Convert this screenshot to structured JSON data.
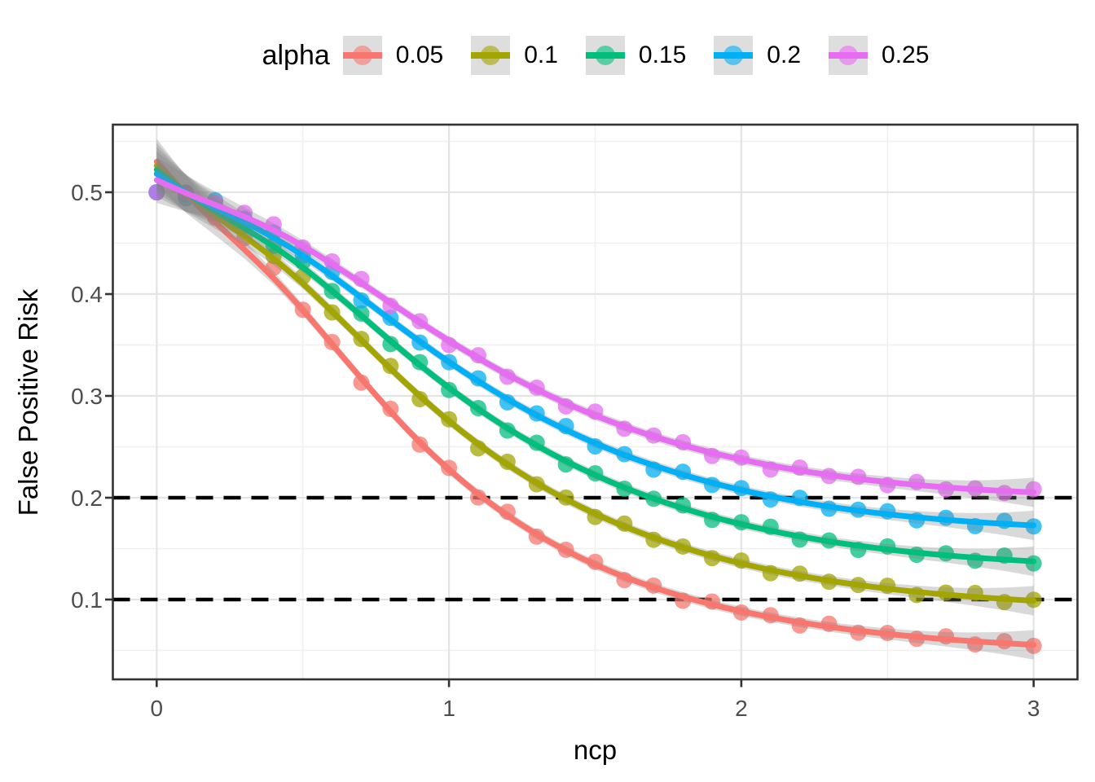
{
  "figure": {
    "background": "#FFFFFF"
  },
  "legend": {
    "title": "alpha",
    "key_background": "#DEDEDE",
    "position": "top-center",
    "entries": [
      {
        "label": "0.05",
        "color": "#F8766D"
      },
      {
        "label": "0.1",
        "color": "#A3A500"
      },
      {
        "label": "0.15",
        "color": "#00BF7D"
      },
      {
        "label": "0.2",
        "color": "#00B0F6"
      },
      {
        "label": "0.25",
        "color": "#E76BF3"
      }
    ]
  },
  "axes": {
    "x": {
      "title": "ncp",
      "tick_values": [
        0,
        1,
        2,
        3
      ],
      "tick_labels": [
        "0",
        "1",
        "2",
        "3"
      ],
      "range": [
        -0.15,
        3.15
      ]
    },
    "y": {
      "title": "False Positive Risk",
      "tick_values": [
        0.5,
        0.4,
        0.3,
        0.2,
        0.1
      ],
      "tick_labels": [
        "0.5",
        "0.4",
        "0.3",
        "0.2",
        "0.1"
      ],
      "range": [
        0.0216,
        0.5664
      ]
    }
  },
  "grid": {
    "major_color": "#E4E4E4",
    "minor_color": "#F0F0F0",
    "minor_x": [
      0.5,
      1.5,
      2.5
    ],
    "minor_y": [
      0.05,
      0.15,
      0.25,
      0.35,
      0.45,
      0.55
    ]
  },
  "panel": {
    "border_color": "#333333",
    "background": "#FFFFFF"
  },
  "reference_lines": {
    "values": [
      0.2,
      0.1
    ],
    "color": "#000000",
    "style": "dashed"
  },
  "chart_data": {
    "type": "scatter+smooth",
    "title": "",
    "xlabel": "ncp",
    "ylabel": "False Positive Risk",
    "legend_title": "alpha",
    "legend_position": "top",
    "xlim": [
      -0.15,
      3.15
    ],
    "ylim": [
      0.0216,
      0.5664
    ],
    "x": [
      0,
      0.1,
      0.2,
      0.3,
      0.4,
      0.5,
      0.6,
      0.7,
      0.8,
      0.9,
      1.0,
      1.1,
      1.2,
      1.3,
      1.4,
      1.5,
      1.6,
      1.7,
      1.8,
      1.9,
      2.0,
      2.1,
      2.2,
      2.3,
      2.4,
      2.5,
      2.6,
      2.7,
      2.8,
      2.9,
      3.0
    ],
    "series": [
      {
        "name": "0.05",
        "alpha": 0.05,
        "color": "#F8766D",
        "smooth_overshoot": 0.03,
        "y": [
          0.5,
          0.4946,
          0.478,
          0.4529,
          0.4219,
          0.3876,
          0.3519,
          0.3171,
          0.2843,
          0.2542,
          0.2273,
          0.2033,
          0.1822,
          0.1638,
          0.1479,
          0.134,
          0.1221,
          0.1117,
          0.1028,
          0.095,
          0.0883,
          0.0826,
          0.0775,
          0.0732,
          0.0694,
          0.0662,
          0.0634,
          0.0609,
          0.0589,
          0.0571,
          0.0555
        ]
      },
      {
        "name": "0.1",
        "alpha": 0.1,
        "color": "#A3A500",
        "smooth_overshoot": 0.026,
        "y": [
          0.5,
          0.4958,
          0.4836,
          0.4647,
          0.4405,
          0.4131,
          0.384,
          0.3549,
          0.3264,
          0.2998,
          0.275,
          0.2525,
          0.2323,
          0.2142,
          0.1982,
          0.1841,
          0.1716,
          0.1607,
          0.1511,
          0.1427,
          0.1353,
          0.1289,
          0.1234,
          0.1185,
          0.1143,
          0.1106,
          0.1075,
          0.1048,
          0.1025,
          0.1005,
          0.0988
        ]
      },
      {
        "name": "0.15",
        "alpha": 0.15,
        "color": "#00BF7D",
        "smooth_overshoot": 0.022,
        "y": [
          0.5,
          0.4967,
          0.4869,
          0.4714,
          0.4515,
          0.4287,
          0.404,
          0.3789,
          0.3539,
          0.3301,
          0.3078,
          0.287,
          0.268,
          0.251,
          0.2357,
          0.222,
          0.2098,
          0.199,
          0.1895,
          0.1812,
          0.1739,
          0.1675,
          0.1619,
          0.157,
          0.1528,
          0.1492,
          0.146,
          0.1434,
          0.1411,
          0.1392,
          0.1375
        ]
      },
      {
        "name": "0.2",
        "alpha": 0.2,
        "color": "#00B0F6",
        "smooth_overshoot": 0.018,
        "y": [
          0.5,
          0.4971,
          0.4891,
          0.4761,
          0.4594,
          0.4399,
          0.4188,
          0.3967,
          0.3747,
          0.3534,
          0.3331,
          0.3142,
          0.2967,
          0.2808,
          0.2664,
          0.2534,
          0.2418,
          0.2316,
          0.2225,
          0.2145,
          0.2074,
          0.2013,
          0.1959,
          0.1912,
          0.1872,
          0.1837,
          0.1808,
          0.1783,
          0.1761,
          0.1743,
          0.1728
        ]
      },
      {
        "name": "0.25",
        "alpha": 0.25,
        "color": "#E76BF3",
        "smooth_overshoot": 0.012,
        "y": [
          0.5,
          0.4976,
          0.4907,
          0.4798,
          0.4655,
          0.4487,
          0.4301,
          0.4108,
          0.3915,
          0.3723,
          0.354,
          0.3369,
          0.3208,
          0.3061,
          0.2927,
          0.2806,
          0.2698,
          0.2601,
          0.2515,
          0.244,
          0.2374,
          0.2317,
          0.2266,
          0.2223,
          0.2185,
          0.2153,
          0.2125,
          0.2102,
          0.2082,
          0.2066,
          0.2053
        ]
      }
    ],
    "smooth_overshoot_shape": [
      1,
      0.1,
      -0.25,
      -0.3,
      -0.2,
      -0.1,
      -0.04,
      0,
      0,
      0,
      0,
      0,
      0,
      0,
      0,
      0,
      0,
      0,
      0,
      0,
      0,
      0,
      0,
      0,
      0,
      0,
      0,
      0,
      0,
      0,
      0
    ],
    "point_jitter": [
      0,
      0.003,
      -0.003,
      0.002,
      0.004,
      -0.003,
      0.001,
      -0.004,
      0.003,
      -0.002,
      0.002,
      -0.003,
      0.004,
      -0.002,
      0.001,
      0.003,
      -0.003,
      0.002,
      -0.004,
      0.003,
      -0.001,
      0.002,
      -0.003,
      0.003,
      -0.002,
      0.001,
      -0.002,
      0.003,
      -0.003,
      0.002,
      -0.001
    ],
    "ribbon_halfwidth": [
      0.0225,
      0.0179,
      0.0129,
      0.009,
      0.0067,
      0.0055,
      0.005,
      0.0047,
      0.0046,
      0.0045,
      0.0045,
      0.0045,
      0.0045,
      0.0045,
      0.0045,
      0.0045,
      0.0045,
      0.0045,
      0.0045,
      0.0045,
      0.0045,
      0.0045,
      0.0046,
      0.0047,
      0.005,
      0.0054,
      0.0061,
      0.0071,
      0.0087,
      0.0111,
      0.0145
    ],
    "ribbon_color": "#808080"
  }
}
